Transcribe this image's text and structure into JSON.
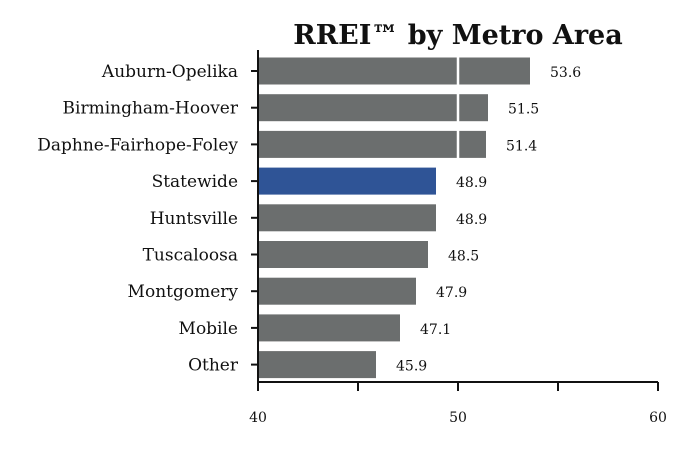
{
  "chart_data": {
    "type": "bar",
    "orientation": "horizontal",
    "title": "RREI™ by Metro Area",
    "xlabel": "",
    "ylabel": "",
    "xlim": [
      40,
      60
    ],
    "xticks": [
      40,
      50,
      60
    ],
    "grid": false,
    "reference_line": 50,
    "categories": [
      "Auburn-Opelika",
      "Birmingham-Hoover",
      "Daphne-Fairhope-Foley",
      "Statewide",
      "Huntsville",
      "Tuscaloosa",
      "Montgomery",
      "Mobile",
      "Other"
    ],
    "values": [
      53.6,
      51.5,
      51.4,
      48.9,
      48.9,
      48.5,
      47.9,
      47.1,
      45.9
    ],
    "value_labels": [
      "53.6",
      "51.5",
      "51.4",
      "48.9",
      "48.9",
      "48.5",
      "47.9",
      "47.1",
      "45.9"
    ],
    "highlight_category": "Statewide",
    "colors": {
      "bar": "#6b6e6e",
      "highlight": "#2f5496",
      "axis": "#111111",
      "reference_line": "#ffffff"
    }
  }
}
